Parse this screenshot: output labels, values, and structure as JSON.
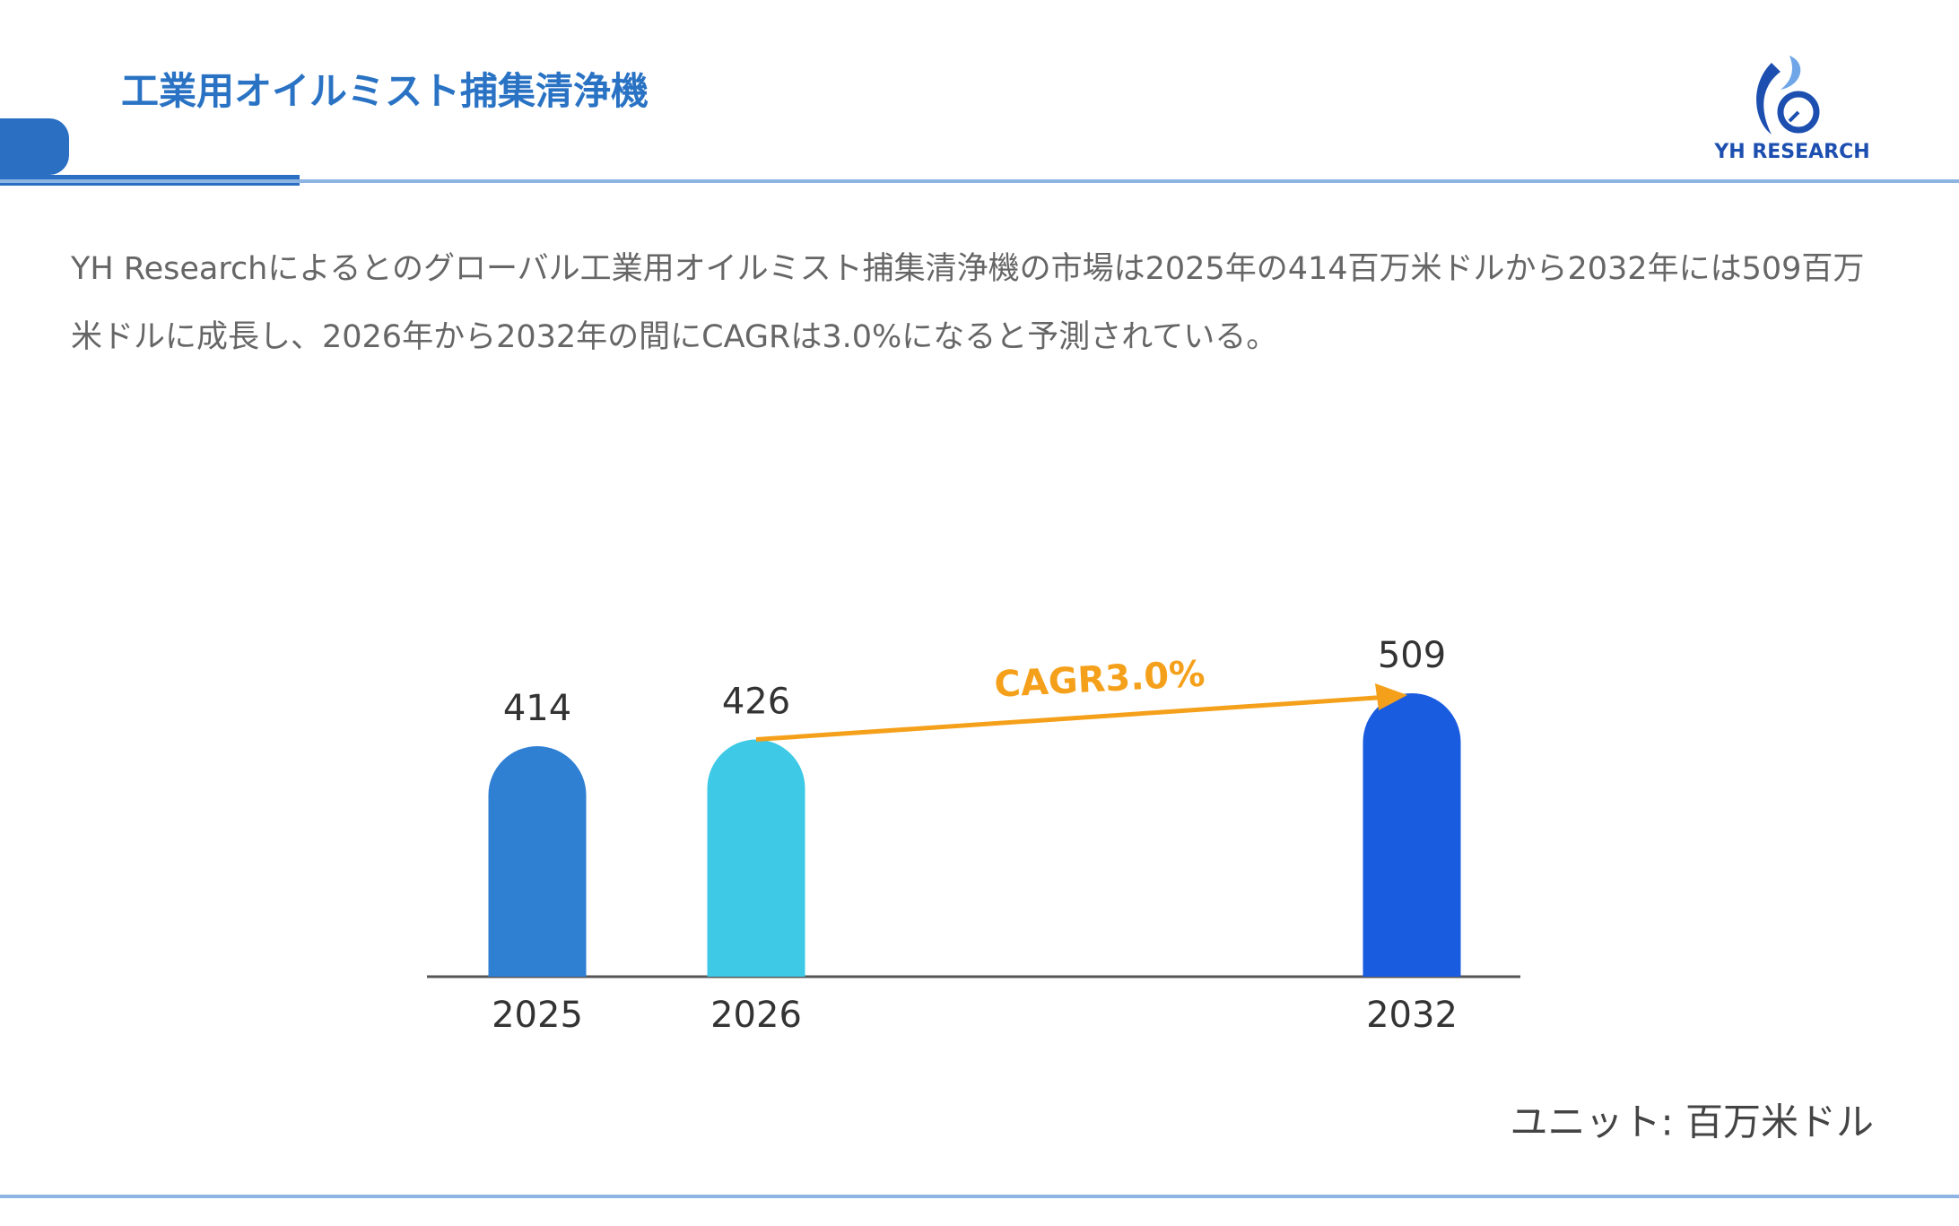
{
  "header": {
    "title": "工業用オイルミスト捕集清浄機",
    "logo": "YH RESEARCH"
  },
  "description": "YH Researchによるとのグローバル工業用オイルミスト捕集清浄機の市場は2025年の414百万米ドルから2032年には509百万米ドルに成長し、2026年から2032年の間にCAGRは3.0%になると予測されている。",
  "chart_data": {
    "type": "bar",
    "categories": [
      "2025",
      "2026",
      "2032"
    ],
    "values": [
      414,
      426,
      509
    ],
    "colors": [
      "#2f7fd3",
      "#3ec9e6",
      "#1a5ce0"
    ],
    "annotation": "CAGR3.0%",
    "unit": "ユニット: 百万米ドル"
  }
}
